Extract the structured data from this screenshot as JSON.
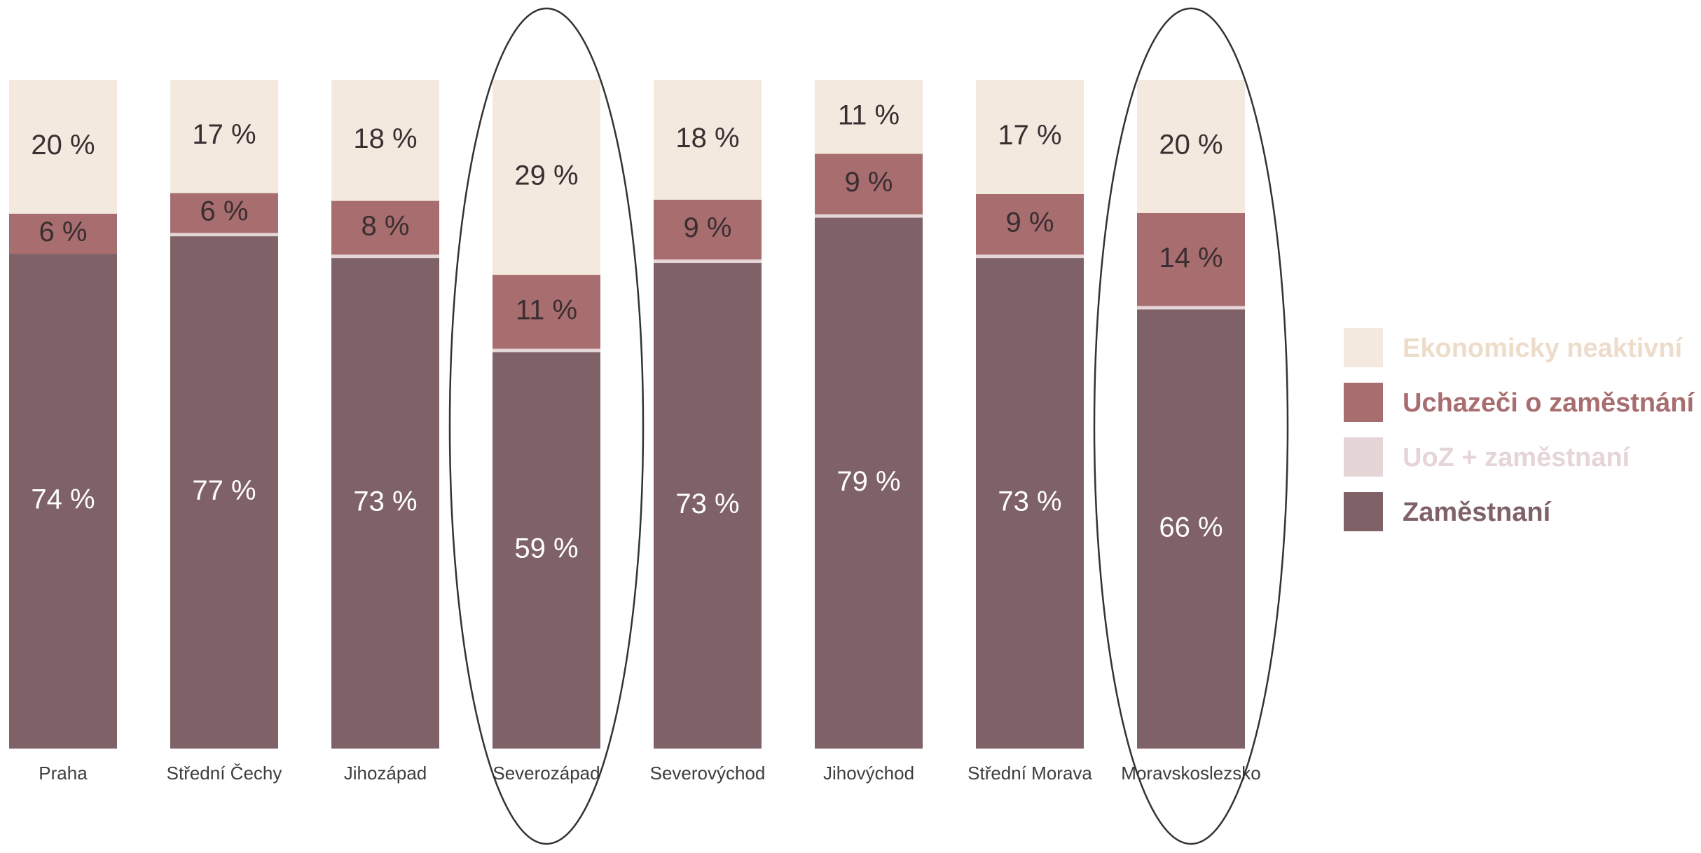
{
  "chart_data": {
    "type": "bar",
    "stacked": true,
    "categories": [
      "Praha",
      "Střední Čechy",
      "Jihozápad",
      "Severozápad",
      "Severovýchod",
      "Jihovýchod",
      "Střední Morava",
      "Moravskoslezsko"
    ],
    "series": [
      {
        "name": "Zaměstnaní",
        "color": "#7f6168",
        "label_color": "#ffffff",
        "values": [
          74,
          77,
          73,
          59,
          73,
          79,
          73,
          66
        ],
        "labels": [
          "74 %",
          "77 %",
          "73 %",
          "59 %",
          "73 %",
          "79 %",
          "73 %",
          "66 %"
        ]
      },
      {
        "name": "UoZ + zaměstnaní",
        "color": "#e5d5d7",
        "label_color": "#3a2e31",
        "values": [
          0,
          0.5,
          0.5,
          0.5,
          0.5,
          0.5,
          0.5,
          0.5
        ],
        "labels": [
          "",
          "",
          "",
          "",
          "",
          "",
          "",
          ""
        ]
      },
      {
        "name": "Uchazeči o zaměstnání",
        "color": "#a86d6f",
        "label_color": "#3a2e31",
        "values": [
          6,
          6,
          8,
          11,
          9,
          9,
          9,
          14
        ],
        "labels": [
          "6 %",
          "6 %",
          "8 %",
          "11 %",
          "9 %",
          "9 %",
          "9 %",
          "14 %"
        ]
      },
      {
        "name": "Ekonomicky neaktivní",
        "color": "#f4e9de",
        "label_color": "#3a2e31",
        "values": [
          20,
          17,
          18,
          29,
          18,
          11,
          17,
          20
        ],
        "labels": [
          "20 %",
          "17 %",
          "18 %",
          "29 %",
          "18 %",
          "11 %",
          "17 %",
          "20 %"
        ]
      }
    ],
    "legend": {
      "placement": "right",
      "items": [
        {
          "label": "Ekonomicky neaktivní",
          "color": "#f4e9de",
          "text_color": "#eedccb"
        },
        {
          "label": "Uchazeči o zaměstnání",
          "color": "#a86d6f",
          "text_color": "#a86d6f"
        },
        {
          "label": "UoZ + zaměstnaní",
          "color": "#e5d5d7",
          "text_color": "#e5d5d7"
        },
        {
          "label": "Zaměstnaní",
          "color": "#7f6168",
          "text_color": "#7f6168"
        }
      ]
    },
    "highlighted_categories": [
      "Severozápad",
      "Moravskoslezsko"
    ],
    "ylim": [
      0,
      100
    ],
    "grid": false,
    "title": "",
    "xlabel": "",
    "ylabel": ""
  }
}
